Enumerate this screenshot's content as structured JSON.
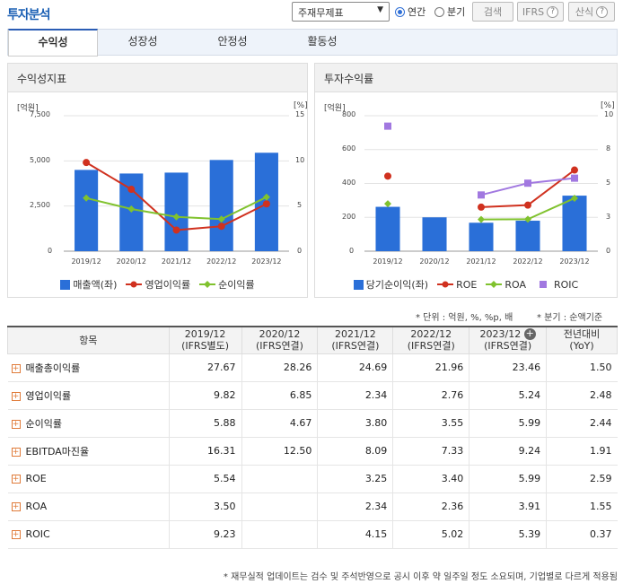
{
  "header": {
    "title": "투자분석",
    "select_value": "주재무제표",
    "radio_annual": "연간",
    "radio_quarter": "분기",
    "search_label": "검색",
    "ifrs_label": "IFRS",
    "formula_label": "산식",
    "help_glyph": "?"
  },
  "tabs": [
    "수익성",
    "성장성",
    "안정성",
    "활동성"
  ],
  "panel_left": {
    "title": "수익성지표",
    "unit_left": "[억원]",
    "unit_right": "[%]",
    "y_left_ticks": [
      "7,500",
      "5,000",
      "2,500",
      "0"
    ],
    "y_right_ticks": [
      "15",
      "10",
      "5",
      "0"
    ],
    "legend": [
      "매출액(좌)",
      "영업이익률",
      "순이익률"
    ]
  },
  "panel_right": {
    "title": "투자수익률",
    "unit_left": "[억원]",
    "unit_right": "[%]",
    "y_left_ticks": [
      "800",
      "600",
      "400",
      "200",
      "0"
    ],
    "y_right_ticks": [
      "10",
      "8",
      "5",
      "3",
      "0"
    ],
    "legend": [
      "당기순이익(좌)",
      "ROE",
      "ROA",
      "ROIC"
    ]
  },
  "chart_data": [
    {
      "type": "bar",
      "title": "수익성지표",
      "categories": [
        "2019/12",
        "2020/12",
        "2021/12",
        "2022/12",
        "2023/12"
      ],
      "ylim_left": [
        0,
        7500
      ],
      "ylim_right": [
        0,
        15
      ],
      "series": [
        {
          "name": "매출액(좌)",
          "axis": "left",
          "kind": "bar",
          "color": "#2a6fd8",
          "values": [
            4500,
            4300,
            4350,
            5050,
            5450
          ]
        },
        {
          "name": "영업이익률",
          "axis": "right",
          "kind": "line",
          "color": "#d0311f",
          "values": [
            9.82,
            6.85,
            2.34,
            2.76,
            5.24
          ]
        },
        {
          "name": "순이익률",
          "axis": "right",
          "kind": "line",
          "color": "#80c22e",
          "values": [
            5.88,
            4.67,
            3.8,
            3.55,
            5.99
          ]
        }
      ]
    },
    {
      "type": "bar",
      "title": "투자수익률",
      "categories": [
        "2019/12",
        "2020/12",
        "2021/12",
        "2022/12",
        "2023/12"
      ],
      "ylim_left": [
        0,
        800
      ],
      "ylim_right": [
        0,
        10
      ],
      "series": [
        {
          "name": "당기순이익(좌)",
          "axis": "left",
          "kind": "bar",
          "color": "#2a6fd8",
          "values": [
            262,
            200,
            168,
            180,
            328
          ]
        },
        {
          "name": "ROE",
          "axis": "right",
          "kind": "line",
          "color": "#d0311f",
          "values": [
            5.54,
            null,
            3.25,
            3.4,
            5.99
          ]
        },
        {
          "name": "ROA",
          "axis": "right",
          "kind": "line",
          "color": "#80c22e",
          "values": [
            3.5,
            null,
            2.34,
            2.36,
            3.91
          ]
        },
        {
          "name": "ROIC",
          "axis": "right",
          "kind": "scatter-line",
          "color": "#a178e0",
          "values": [
            9.23,
            null,
            4.15,
            5.02,
            5.39
          ]
        }
      ]
    }
  ],
  "notes": {
    "unit": "* 단위 : 억원, %, %p, 배",
    "quarter": "* 분기 : 순액기준"
  },
  "table": {
    "head_item": "항목",
    "columns": [
      {
        "period": "2019/12",
        "basis": "(IFRS별도)"
      },
      {
        "period": "2020/12",
        "basis": "(IFRS연결)"
      },
      {
        "period": "2021/12",
        "basis": "(IFRS연결)"
      },
      {
        "period": "2022/12",
        "basis": "(IFRS연결)"
      },
      {
        "period": "2023/12",
        "basis": "(IFRS연결)"
      }
    ],
    "yoy_head": "전년대비",
    "yoy_sub": "(YoY)",
    "add_glyph": "+",
    "expand_glyph": "+",
    "rows": [
      {
        "label": "매출총이익률",
        "values": [
          "27.67",
          "28.26",
          "24.69",
          "21.96",
          "23.46"
        ],
        "yoy": "1.50"
      },
      {
        "label": "영업이익률",
        "values": [
          "9.82",
          "6.85",
          "2.34",
          "2.76",
          "5.24"
        ],
        "yoy": "2.48"
      },
      {
        "label": "순이익률",
        "values": [
          "5.88",
          "4.67",
          "3.80",
          "3.55",
          "5.99"
        ],
        "yoy": "2.44"
      },
      {
        "label": "EBITDA마진율",
        "values": [
          "16.31",
          "12.50",
          "8.09",
          "7.33",
          "9.24"
        ],
        "yoy": "1.91"
      },
      {
        "label": "ROE",
        "values": [
          "5.54",
          "",
          "3.25",
          "3.40",
          "5.99"
        ],
        "yoy": "2.59"
      },
      {
        "label": "ROA",
        "values": [
          "3.50",
          "",
          "2.34",
          "2.36",
          "3.91"
        ],
        "yoy": "1.55"
      },
      {
        "label": "ROIC",
        "values": [
          "9.23",
          "",
          "4.15",
          "5.02",
          "5.39"
        ],
        "yoy": "0.37"
      }
    ]
  },
  "footer": "* 재무실적 업데이트는 검수 및 주석반영으로 공시 이후 약 일주일 정도 소요되며, 기업별로 다르게 적용됨"
}
